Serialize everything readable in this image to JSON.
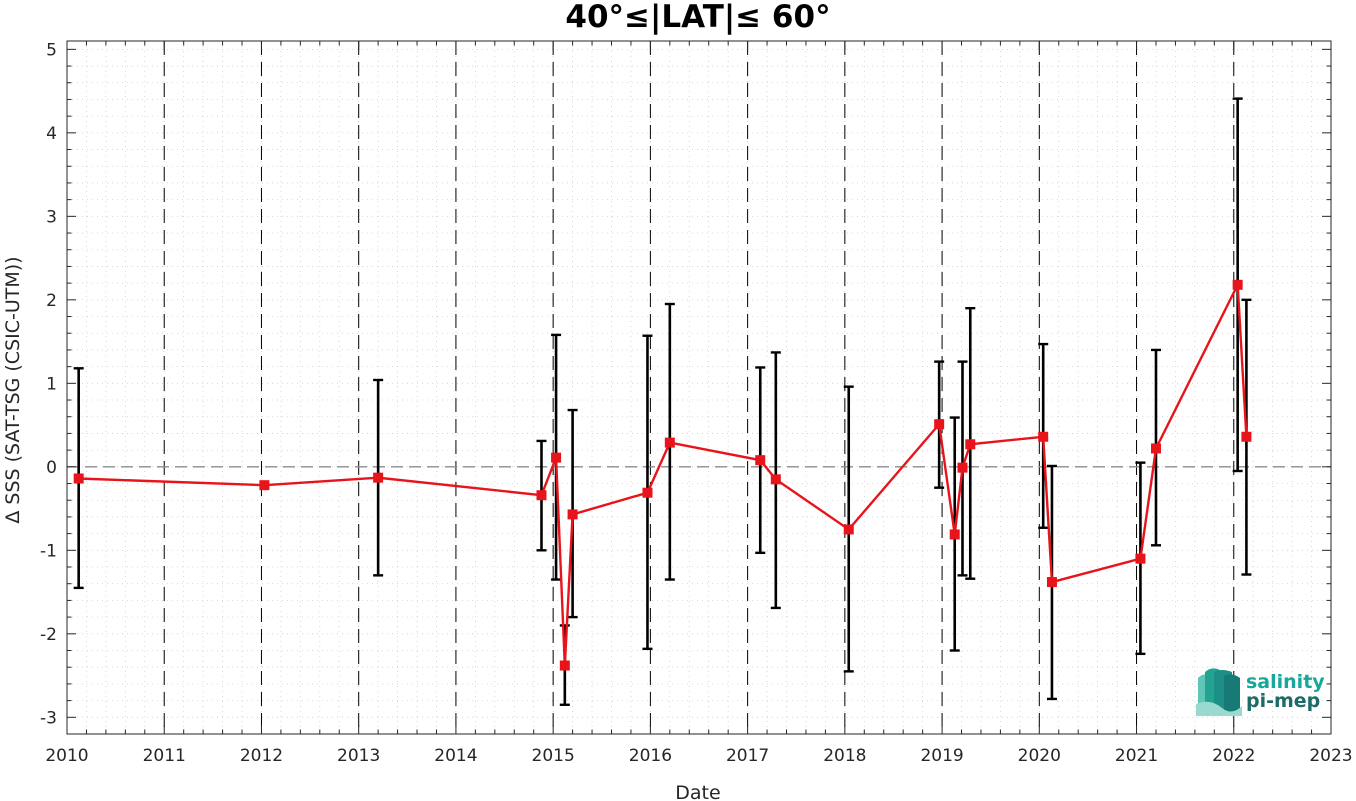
{
  "chart_data": {
    "type": "line",
    "title": "40°≤|LAT|≤ 60°",
    "xlabel": "Date",
    "ylabel": "Δ SSS (SAT-TSG (CSIC-UTM))",
    "xlim": [
      2010,
      2023
    ],
    "ylim": [
      -3.2,
      5.1
    ],
    "x_ticks": [
      "2010",
      "2011",
      "2012",
      "2013",
      "2014",
      "2015",
      "2016",
      "2017",
      "2018",
      "2019",
      "2020",
      "2021",
      "2022",
      "2023"
    ],
    "y_ticks": [
      "5",
      "4",
      "3",
      "2",
      "1",
      "0",
      "-1",
      "-2",
      "-3"
    ],
    "grid": "dotted-minor",
    "zero_line": true,
    "vertical_year_lines": [
      2011,
      2012,
      2013,
      2014,
      2015,
      2016,
      2017,
      2018,
      2019,
      2020,
      2021,
      2022
    ],
    "series": [
      {
        "color": "#e8141b",
        "marker": "square",
        "x": [
          2010.12,
          2012.03,
          2013.2,
          2014.88,
          2015.03,
          2015.12,
          2015.2,
          2015.97,
          2016.2,
          2017.13,
          2017.29,
          2018.04,
          2018.97,
          2019.13,
          2019.21,
          2019.29,
          2020.04,
          2020.13,
          2021.04,
          2021.2,
          2022.04,
          2022.13
        ],
        "y": [
          -0.14,
          -0.22,
          -0.13,
          -0.34,
          0.11,
          -2.38,
          -0.57,
          -0.31,
          0.29,
          0.08,
          -0.15,
          -0.75,
          0.51,
          -0.81,
          -0.01,
          0.27,
          0.36,
          -1.38,
          -1.1,
          0.22,
          2.18,
          0.36
        ],
        "err_low": [
          -1.45,
          -0.22,
          -1.3,
          -1.0,
          -1.35,
          -2.85,
          -1.8,
          -2.18,
          -1.35,
          -1.03,
          -1.69,
          -2.45,
          -0.25,
          -2.2,
          -1.3,
          -1.34,
          -0.73,
          -2.78,
          -2.24,
          -0.94,
          -0.05,
          -1.29
        ],
        "err_high": [
          1.18,
          -0.22,
          1.04,
          0.31,
          1.58,
          -1.9,
          0.68,
          1.57,
          1.95,
          1.19,
          1.37,
          0.96,
          1.26,
          0.59,
          1.26,
          1.9,
          1.47,
          0.01,
          0.05,
          1.4,
          4.41,
          2.0
        ]
      }
    ]
  },
  "logo": {
    "line1": "salinity",
    "line2": "pi-mep",
    "color_main": "#17a899",
    "color_dark": "#1d6b66"
  }
}
